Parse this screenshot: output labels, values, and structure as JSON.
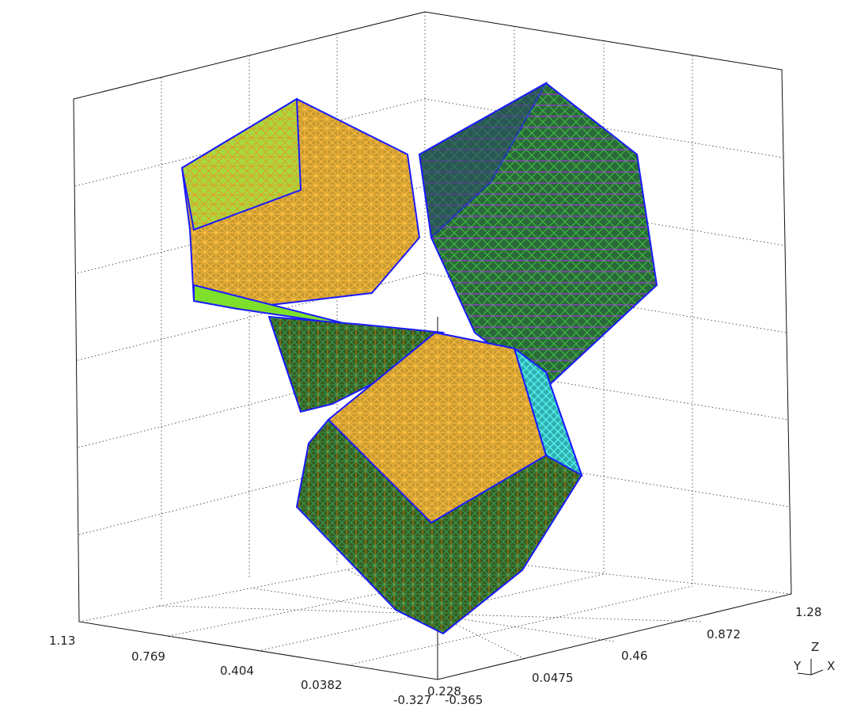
{
  "viewport": {
    "axis_a_ticks": [
      "1.13",
      "0.769",
      "0.404",
      "0.0382",
      "-0.327"
    ],
    "axis_b_ticks": [
      "-0.365",
      "0.0475",
      "0.46",
      "0.872",
      "1.28"
    ],
    "axis_c_ticks": [
      "0.228"
    ],
    "triad": {
      "z": "Z",
      "y": "Y",
      "x": "X"
    },
    "colors": {
      "edge": "#1a1aff",
      "yellow_mesh": "#f0b020",
      "green_mesh": "#2a8a1a",
      "purple_mesh": "#a020f0",
      "cyan_mesh": "#20d0d0",
      "lime_face": "#7ee02a"
    }
  }
}
